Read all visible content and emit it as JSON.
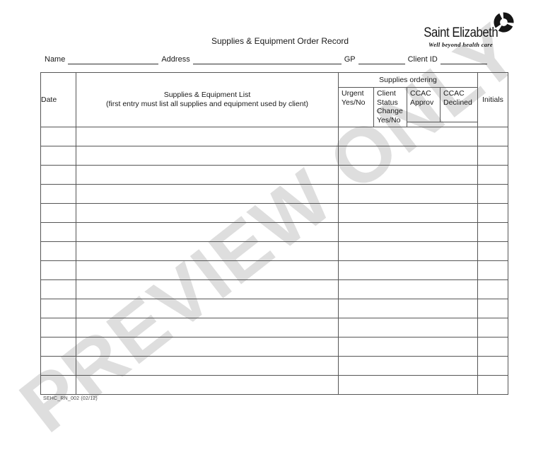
{
  "page": {
    "title": "Supplies & Equipment Order Record",
    "watermark": "PREVIEW ONLY",
    "footer_code": "SEHC_RN_002 (02/12)"
  },
  "logo": {
    "name": "Saint Elizabeth",
    "tagline": "Well beyond health care",
    "icon": "pinwheel-circle-icon"
  },
  "fields": [
    {
      "label": "Name",
      "value": ""
    },
    {
      "label": "Address",
      "value": ""
    },
    {
      "label": "GP",
      "value": ""
    },
    {
      "label": "Client ID",
      "value": ""
    }
  ],
  "table": {
    "group_header": "Supplies ordering",
    "columns": {
      "date": "Date",
      "supplies_line1": "Supplies & Equipment List",
      "supplies_line2": "(first entry must list all supplies and equipment used by client)",
      "urgent": "Urgent Yes/No",
      "client_status": "Client Status Change Yes/No",
      "ccac_approv": "CCAC Approv",
      "ccac_declined": "CCAC Declined",
      "initials": "Initials"
    },
    "body_rows": 14,
    "body_cells_empty": true
  },
  "colors": {
    "watermark": "#dedede",
    "table_border": "#565656",
    "text": "#1a1a1a"
  }
}
